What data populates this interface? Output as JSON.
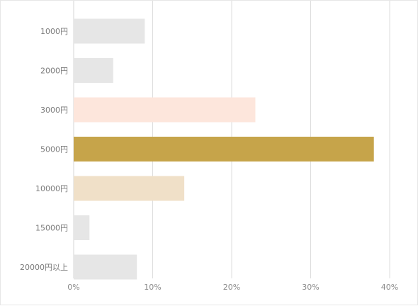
{
  "chart_data": {
    "type": "bar",
    "orientation": "horizontal",
    "categories": [
      "1000円",
      "2000円",
      "3000円",
      "5000円",
      "10000円",
      "15000円",
      "20000円以上"
    ],
    "values": [
      9,
      5,
      23,
      38,
      14,
      2,
      8
    ],
    "value_unit": "%",
    "xlim": [
      0,
      40
    ],
    "xticks": [
      "0%",
      "10%",
      "20%",
      "30%",
      "40%"
    ],
    "xtick_values": [
      0,
      10,
      20,
      30,
      40
    ],
    "grid": "vertical",
    "bar_colors": [
      "#e6e6e6",
      "#e6e6e6",
      "#fde6dc",
      "#c6a44a",
      "#f0e0c8",
      "#e6e6e6",
      "#e6e6e6"
    ],
    "gridline_color": "#dcdcdc",
    "title": "",
    "xlabel": "",
    "ylabel": ""
  }
}
